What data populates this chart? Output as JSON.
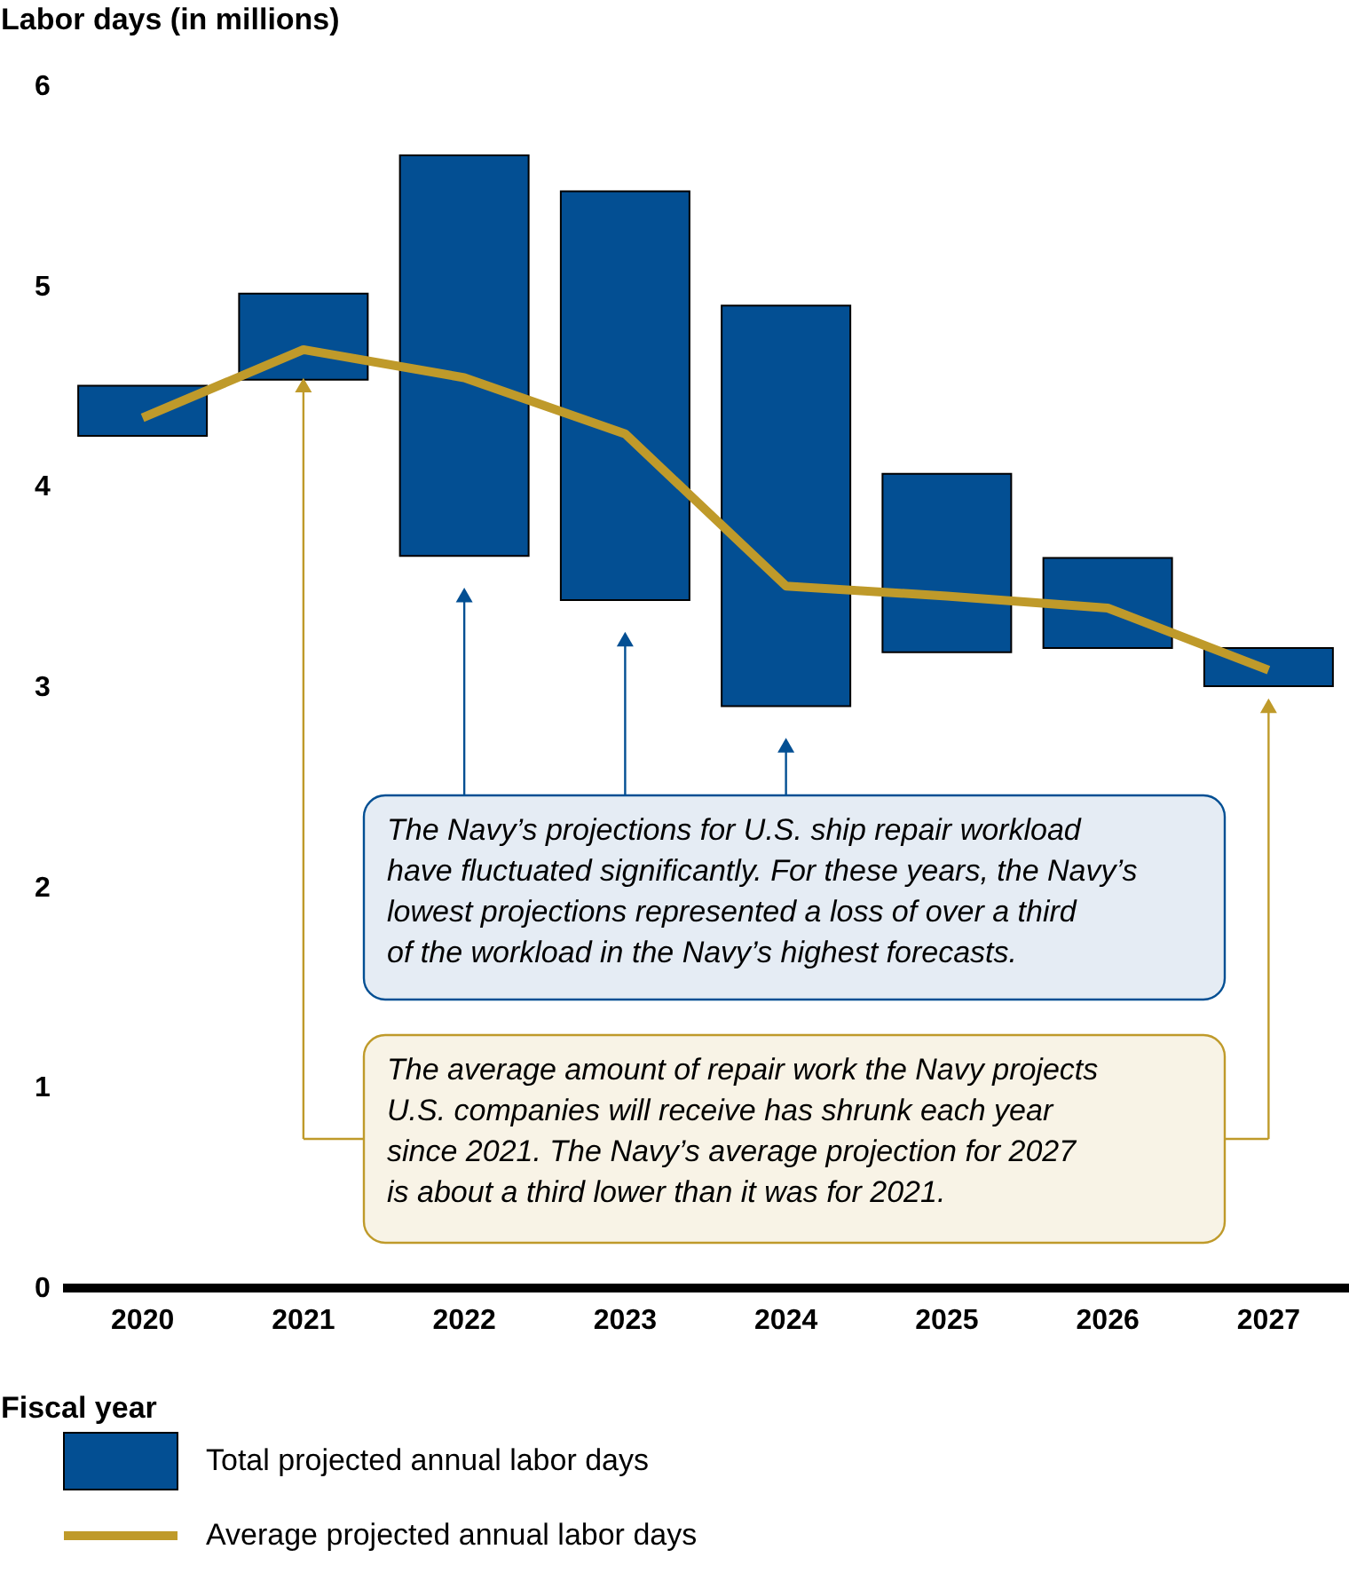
{
  "chart_data": {
    "type": "bar",
    "ylabel": "Labor days (in millions)",
    "xlabel": "Fiscal year",
    "categories": [
      "2020",
      "2021",
      "2022",
      "2023",
      "2024",
      "2025",
      "2026",
      "2027"
    ],
    "series": [
      {
        "name": "Total projected annual labor days",
        "color": "#034f93",
        "base": [
          4.25,
          4.53,
          3.65,
          3.43,
          2.9,
          3.17,
          3.19,
          3.0
        ],
        "values": [
          0.25,
          0.43,
          2.0,
          2.04,
          2.0,
          0.89,
          0.45,
          0.19
        ]
      },
      {
        "name": "Average projected annual labor days",
        "type": "line",
        "color": "#bf9a2a",
        "values": [
          4.34,
          4.68,
          4.54,
          4.26,
          3.5,
          3.45,
          3.39,
          3.08
        ]
      }
    ],
    "ylim": [
      0,
      6
    ],
    "yticks": [
      0,
      1,
      2,
      3,
      4,
      5,
      6
    ],
    "grid": false,
    "legend": "bottom",
    "annotations": [
      "The Navy’s projections for U.S. ship repair workload\nhave fluctuated significantly. For these years, the Navy’s\nlowest projections represented a loss of over a third\nof the workload in the Navy’s highest forecasts.",
      "The average amount of repair work the Navy projects\nU.S. companies will receive has shrunk each year\nsince 2021. The Navy’s average projection for 2027\nis about a third lower than it was for 2021."
    ]
  }
}
